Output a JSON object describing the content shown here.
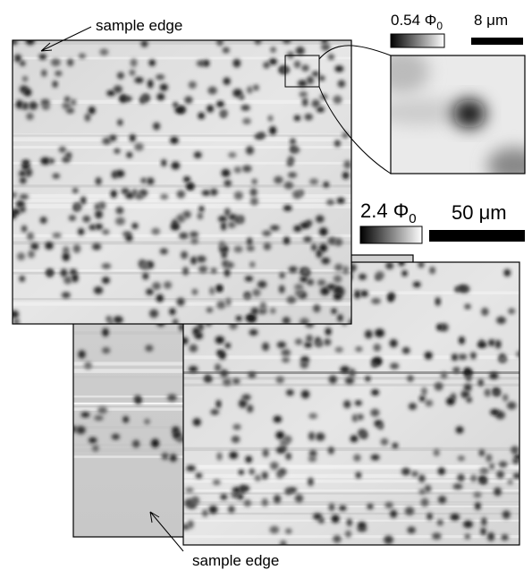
{
  "labels": {
    "top_edge": "sample edge",
    "bottom_edge": "sample edge"
  },
  "inset_colorbar": {
    "label": "0.54 Φ",
    "subscript": "0"
  },
  "inset_scale": "8 μm",
  "main_colorbar": {
    "label": "2.4 Φ",
    "subscript": "0"
  },
  "main_scale": "50 μm"
}
